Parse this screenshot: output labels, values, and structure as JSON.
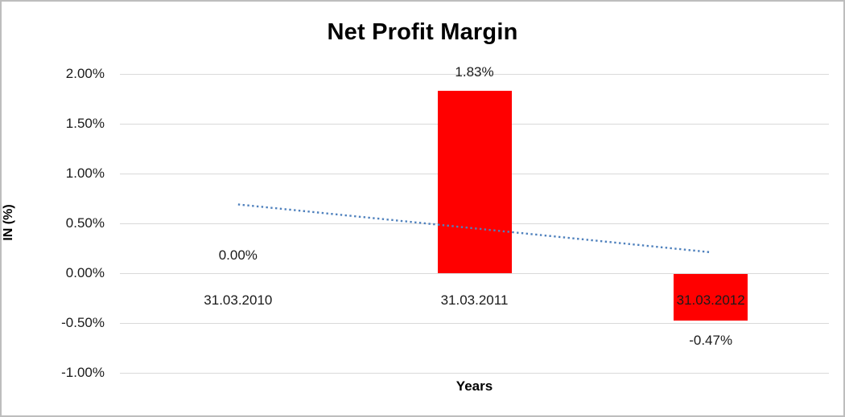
{
  "chart_data": {
    "type": "bar",
    "title": "Net Profit Margin",
    "xlabel": "Years",
    "ylabel": "IN (%)",
    "categories": [
      "31.03.2010",
      "31.03.2011",
      "31.03.2012"
    ],
    "values": [
      0.0,
      1.83,
      -0.47
    ],
    "data_labels": [
      "0.00%",
      "1.83%",
      "-0.47%"
    ],
    "ylim": [
      -1.0,
      2.0
    ],
    "ytick_step": 0.5,
    "ytick_labels": [
      "2.00%",
      "1.50%",
      "1.00%",
      "0.50%",
      "0.00%",
      "-0.50%",
      "-1.00%"
    ],
    "grid": "horizontal",
    "legend": "none",
    "bar_color": "#ff0000",
    "gridline_color": "#d9d9d9",
    "trendline": {
      "type": "linear",
      "style": "dotted",
      "color": "#4f81bd",
      "start_value": 0.69,
      "end_value": 0.21
    }
  }
}
